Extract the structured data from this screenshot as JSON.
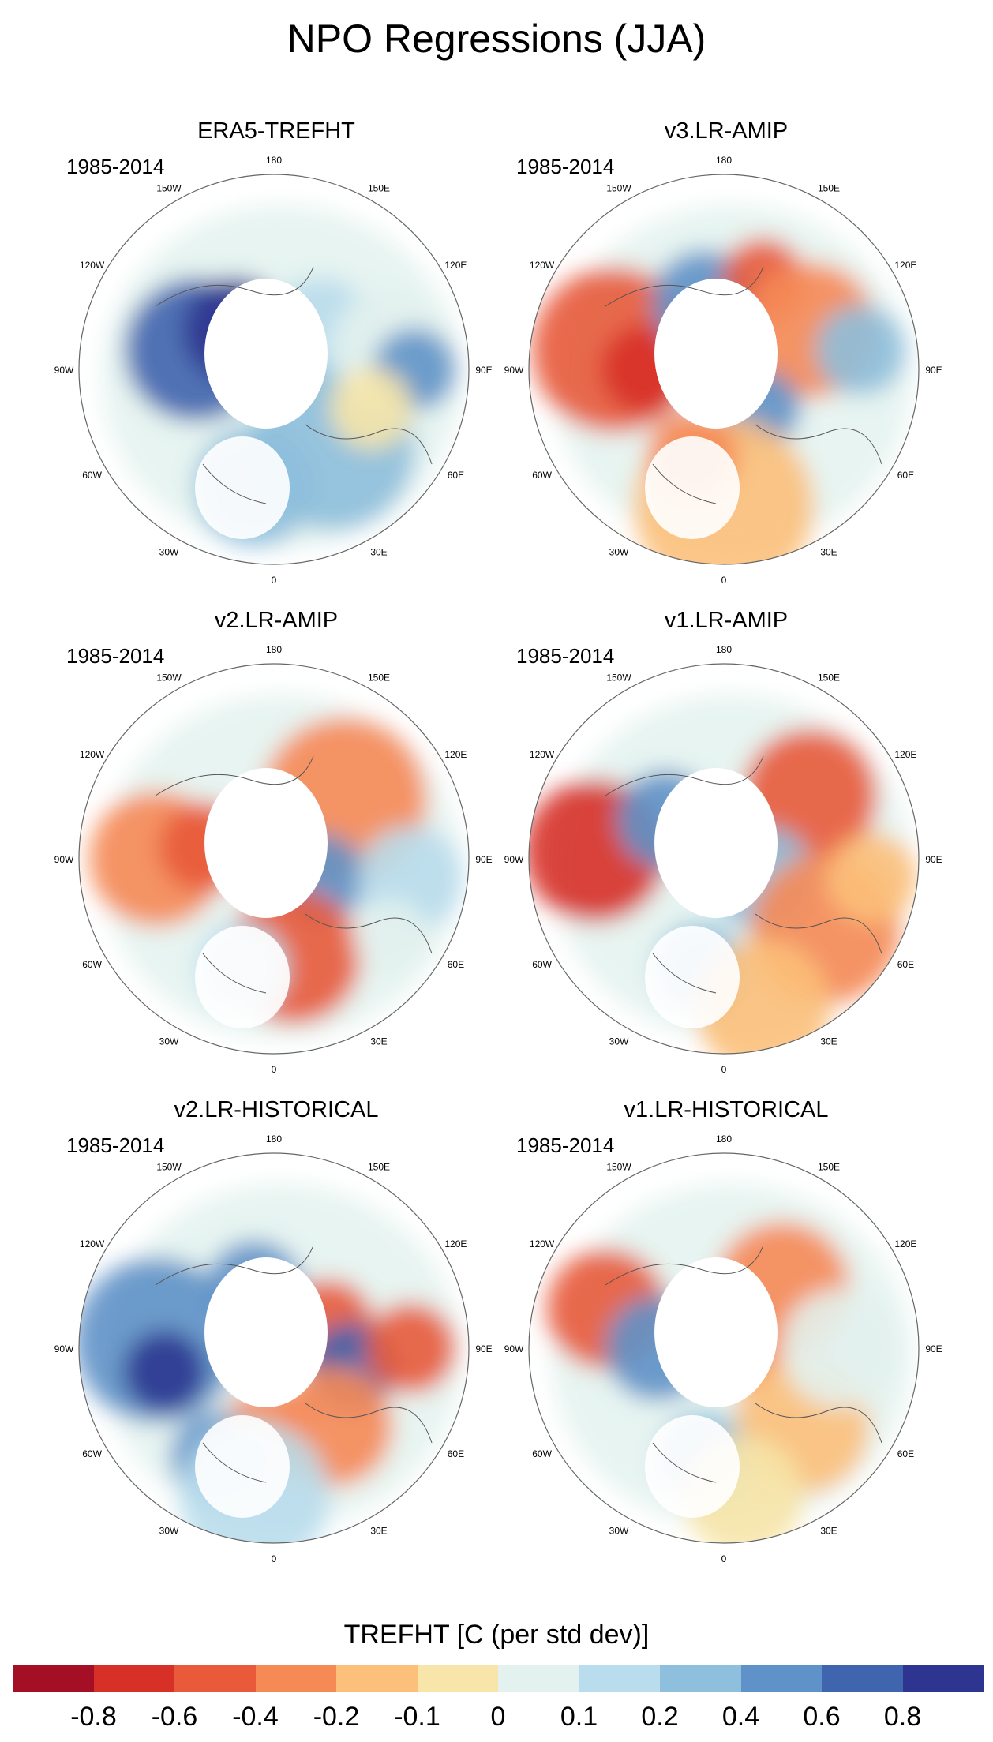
{
  "title": "NPO Regressions (JJA)",
  "panels": [
    {
      "title": "ERA5-TREFHT",
      "period": "1985-2014"
    },
    {
      "title": "v3.LR-AMIP",
      "period": "1985-2014"
    },
    {
      "title": "v2.LR-AMIP",
      "period": "1985-2014"
    },
    {
      "title": "v1.LR-AMIP",
      "period": "1985-2014"
    },
    {
      "title": "v2.LR-HISTORICAL",
      "period": "1985-2014"
    },
    {
      "title": "v1.LR-HISTORICAL",
      "period": "1985-2014"
    }
  ],
  "longitude_labels": [
    "180",
    "150E",
    "120E",
    "90E",
    "60E",
    "30E",
    "0",
    "30W",
    "60W",
    "90W",
    "120W",
    "150W"
  ],
  "colorbar": {
    "title": "TREFHT [C (per std dev)]",
    "tick_labels": [
      "-0.8",
      "-0.6",
      "-0.4",
      "-0.2",
      "-0.1",
      "0",
      "0.1",
      "0.2",
      "0.4",
      "0.6",
      "0.8"
    ],
    "colors": [
      "#a50f26",
      "#d73027",
      "#e85a3a",
      "#f68a55",
      "#fcc07a",
      "#f7e5a9",
      "#e3f2ee",
      "#b9ddec",
      "#8ebfdc",
      "#5f92c8",
      "#3f65ae",
      "#2d3590"
    ]
  }
}
